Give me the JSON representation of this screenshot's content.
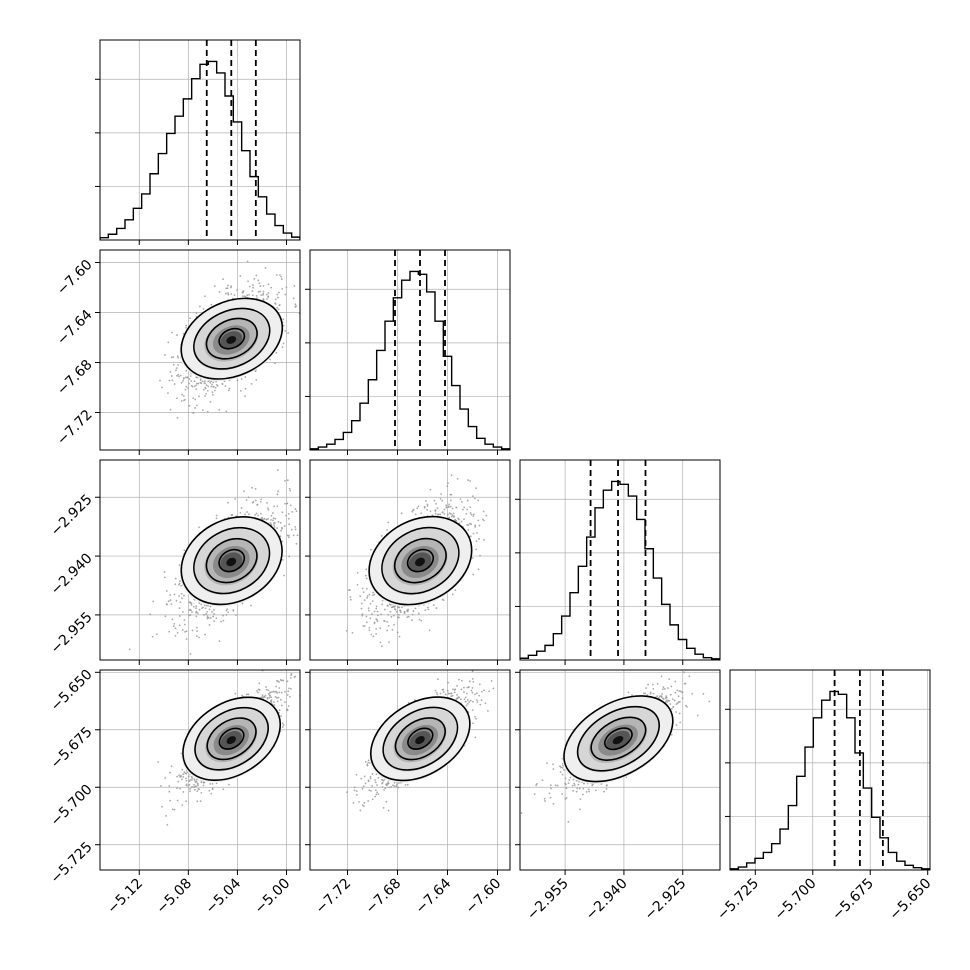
{
  "chart_data": {
    "type": "corner",
    "parameters": [
      {
        "index": 0,
        "median": -5.045,
        "quantiles": [
          -5.065,
          -5.045,
          -5.025
        ],
        "range": [
          -5.152,
          -4.989
        ],
        "ticks": [
          -5.12,
          -5.08,
          -5.04,
          -5.0
        ],
        "tick_labels": [
          "−5.12",
          "−5.08",
          "−5.04",
          "−5.00"
        ],
        "hist": [
          0.4,
          1.0,
          2.0,
          3.5,
          5.5,
          8.0,
          11.5,
          15.0,
          18.5,
          21.5,
          24.5,
          28.0,
          30.5,
          31.0,
          29.0,
          25.0,
          20.5,
          15.5,
          11.0,
          7.5,
          4.5,
          2.5,
          1.2,
          0.5
        ]
      },
      {
        "index": 1,
        "median": -7.662,
        "quantiles": [
          -7.682,
          -7.662,
          -7.642
        ],
        "range": [
          -7.75,
          -7.59
        ],
        "ticks": [
          -7.72,
          -7.68,
          -7.64,
          -7.6
        ],
        "tick_labels": [
          "−7.72",
          "−7.68",
          "−7.64",
          "−7.60"
        ],
        "hist": [
          0.2,
          0.5,
          1.0,
          1.8,
          3.0,
          5.0,
          8.0,
          12.0,
          17.0,
          22.0,
          26.0,
          29.0,
          30.5,
          30.0,
          27.0,
          22.0,
          16.0,
          11.0,
          7.0,
          4.0,
          2.0,
          1.0,
          0.5,
          0.2
        ]
      },
      {
        "index": 2,
        "median": -2.9415,
        "quantiles": [
          -2.9485,
          -2.9415,
          -2.9345
        ],
        "range": [
          -2.9665,
          -2.9155
        ],
        "ticks": [
          -2.955,
          -2.94,
          -2.925
        ],
        "tick_labels": [
          "−2.955",
          "−2.940",
          "−2.925"
        ],
        "hist": [
          0.3,
          0.8,
          1.5,
          2.5,
          4.5,
          7.5,
          11.5,
          16.0,
          21.0,
          26.0,
          29.0,
          30.5,
          30.0,
          28.0,
          24.0,
          19.0,
          14.0,
          9.5,
          6.0,
          3.5,
          2.0,
          1.0,
          0.4,
          0.2
        ]
      },
      {
        "index": 3,
        "median": -5.6795,
        "quantiles": [
          -5.6905,
          -5.6795,
          -5.6695
        ],
        "range": [
          -5.736,
          -5.649
        ],
        "ticks": [
          -5.725,
          -5.7,
          -5.675,
          -5.65
        ],
        "tick_labels": [
          "−5.725",
          "−5.700",
          "−5.675",
          "−5.650"
        ],
        "hist": [
          0.2,
          0.5,
          1.2,
          2.0,
          3.0,
          4.5,
          7.0,
          11.0,
          16.0,
          21.0,
          26.0,
          29.0,
          30.5,
          30.0,
          26.0,
          20.0,
          14.0,
          9.0,
          5.5,
          3.0,
          1.5,
          0.8,
          0.4,
          0.2
        ]
      }
    ],
    "correlations": [
      [
        1.0,
        0.55,
        0.6,
        0.8
      ],
      [
        0.55,
        1.0,
        0.6,
        0.8
      ],
      [
        0.6,
        0.6,
        1.0,
        0.8
      ],
      [
        0.8,
        0.8,
        0.8,
        1.0
      ]
    ],
    "contour_levels_sigma": [
      0.5,
      1.0,
      1.5,
      2.0
    ],
    "scatter_points_per_panel": 1400,
    "quantile_line_style": "dashed",
    "grid": true,
    "colors": {
      "line": "#000000",
      "points": "#9a9a9a",
      "grid": "#b0b0b0"
    }
  }
}
